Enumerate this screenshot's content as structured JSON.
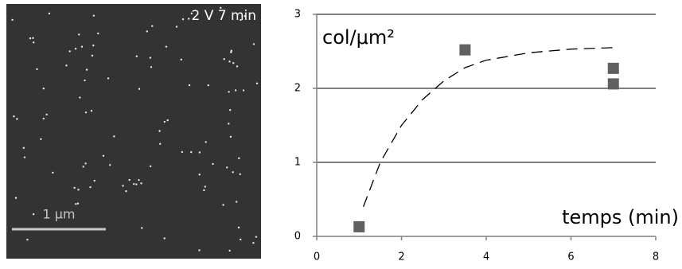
{
  "image": {
    "label": "2 V 7 min",
    "scale_bar": "1 μm"
  },
  "chart_data": {
    "type": "scatter",
    "x": [
      1,
      3.5,
      7,
      7
    ],
    "values": [
      0.13,
      2.52,
      2.27,
      2.06
    ],
    "color": "#606060",
    "fit": {
      "x": [
        1.1,
        1.5,
        2,
        2.5,
        3,
        3.5,
        4,
        5,
        6,
        7
      ],
      "values": [
        0.4,
        1.0,
        1.5,
        1.85,
        2.1,
        2.28,
        2.38,
        2.48,
        2.53,
        2.55
      ],
      "color": "#000000",
      "dashed": true
    },
    "xlim": [
      0,
      8
    ],
    "xticks": [
      0,
      2,
      4,
      6,
      8
    ],
    "ylim": [
      0,
      3
    ],
    "yticks": [
      0,
      1,
      2,
      3
    ],
    "grid": true,
    "y_label": "col/μm²",
    "x_label": "temps (min)"
  }
}
